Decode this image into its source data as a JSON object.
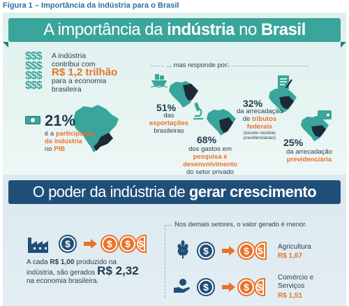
{
  "caption": "Figura 1 – Importância da indústria para o Brasil",
  "section1": {
    "title_start": "A importância da ",
    "title_bold1": "indústria",
    "title_mid": " no ",
    "title_bold2": "Brasil",
    "dollar_glyph": "$$$",
    "intro_line1": "A indústria",
    "intro_line2": "contribui com",
    "intro_value": "R$ 1,2 trilhão",
    "intro_line3": "para a economia",
    "intro_line4": "brasileira",
    "pib_pct": "21%",
    "pib_line1": "é a ",
    "pib_hl1": "participação",
    "pib_hl2": "da indústria",
    "pib_line3": "no ",
    "pib_hl3": "PIB",
    "responde": "... mas responde por:",
    "exports_pct": "51%",
    "exports_l1": "das",
    "exports_hl": "exportações",
    "exports_l3": "brasileiras",
    "rd_pct": "68%",
    "rd_l1": "dos gastos em",
    "rd_hl1": "pesquisa e",
    "rd_hl2": "desenvolvimento",
    "rd_l4": "do setor privado",
    "taxes_pct": "32%",
    "taxes_l1": "da arrecadação",
    "taxes_l2": "de ",
    "taxes_hl1": "tributos",
    "taxes_hl2": "federais",
    "taxes_note1": "(exceto receitas",
    "taxes_note2": "previdenciárias)",
    "prev_pct": "25%",
    "prev_l1": "da arrecadação",
    "prev_hl": "previdenciária"
  },
  "section2": {
    "title_start": "O poder da indústria de ",
    "title_bold": "gerar crescimento",
    "coin_symbol": "$",
    "desc_l1": "A cada ",
    "desc_hl": "R$ 1,00",
    "desc_l1b": " produzido na",
    "desc_l2": "indústria, são gerados ",
    "desc_big": "R$ 2,32",
    "desc_l3": "na economia brasileira.",
    "others_note": "Nos demais setores, o valor gerado é menor.",
    "agri_name": "Agricultura",
    "agri_value": "R$ 1,67",
    "commerce_name1": "Comércio e",
    "commerce_name2": "Serviços",
    "commerce_value": "R$ 1,51"
  },
  "colors": {
    "teal": "#3aa59a",
    "navy": "#1f4e79",
    "orange": "#e9722a",
    "text": "#2b3f50"
  }
}
